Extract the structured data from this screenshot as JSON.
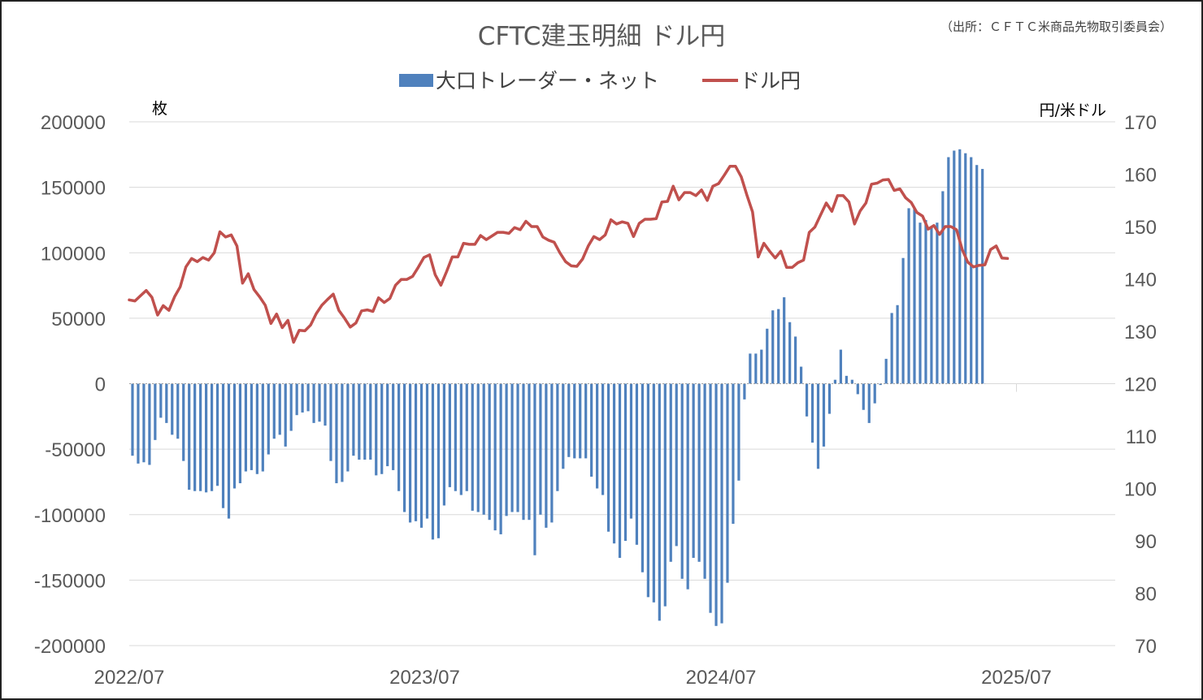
{
  "chart_data": {
    "type": "bar",
    "title": "CFTC建玉明細 ドル円",
    "source_note": "（出所：ＣＦＴＣ米商品先物取引委員会）",
    "left_unit": "枚",
    "right_unit": "円/米ドル",
    "legend_position": "top",
    "grid": true,
    "x_tick_labels": [
      "2022/07",
      "2023/07",
      "2024/07",
      "2025/07"
    ],
    "x_start_date": "2022-07-01",
    "x_end_date": "2025-10-31",
    "y_left": {
      "min": -200000,
      "max": 200000,
      "step": 50000
    },
    "y_right": {
      "min": 70,
      "max": 170,
      "step": 10
    },
    "series": [
      {
        "name": "大口トレーダー・ネット",
        "type": "bar",
        "axis": "left",
        "color": "#4f81bd",
        "start_date": "2022-07-05",
        "interval_days": 7,
        "values": [
          -55000,
          -61000,
          -60000,
          -62000,
          -43000,
          -26000,
          -30000,
          -39000,
          -42000,
          -59000,
          -81000,
          -82000,
          -82000,
          -83000,
          -82000,
          -78000,
          -95000,
          -103000,
          -80000,
          -76000,
          -67000,
          -66000,
          -69000,
          -67000,
          -54000,
          -42000,
          -39000,
          -48000,
          -36000,
          -24000,
          -22000,
          -21000,
          -30000,
          -29000,
          -32000,
          -59000,
          -76000,
          -75000,
          -67000,
          -55000,
          -58000,
          -58000,
          -58000,
          -70000,
          -69000,
          -63000,
          -66000,
          -82000,
          -98000,
          -106000,
          -105000,
          -110000,
          -103000,
          -119000,
          -118000,
          -93000,
          -79000,
          -82000,
          -85000,
          -82000,
          -97000,
          -98000,
          -100000,
          -104000,
          -112000,
          -115000,
          -101000,
          -98000,
          -98000,
          -104000,
          -104000,
          -131000,
          -100000,
          -110000,
          -106000,
          -82000,
          -65000,
          -56000,
          -57000,
          -57000,
          -57000,
          -71000,
          -80000,
          -85000,
          -113000,
          -122000,
          -133000,
          -120000,
          -103000,
          -123000,
          -144000,
          -163000,
          -167000,
          -181000,
          -170000,
          -136000,
          -124000,
          -149000,
          -157000,
          -133000,
          -136000,
          -149000,
          -175000,
          -185000,
          -183000,
          -152000,
          -107000,
          -74000,
          -12000,
          23000,
          23000,
          26000,
          42000,
          56000,
          57000,
          66000,
          47000,
          36000,
          13000,
          -25000,
          -45000,
          -65000,
          -48000,
          -23000,
          3000,
          26000,
          6000,
          3000,
          -8000,
          -20000,
          -30000,
          -15000,
          -1000,
          19000,
          54000,
          60000,
          96000,
          134000,
          134000,
          123000,
          125000,
          120000,
          123000,
          147000,
          173000,
          178000,
          179000,
          176000,
          173000,
          167000,
          164000
        ]
      },
      {
        "name": "ドル円",
        "type": "line",
        "axis": "right",
        "color": "#c0504d",
        "start_date": "2022-07-01",
        "interval_days": 7,
        "values": [
          136.0,
          135.8,
          136.8,
          137.8,
          136.5,
          133.1,
          134.9,
          134.0,
          136.6,
          138.5,
          142.3,
          143.9,
          143.3,
          144.1,
          143.6,
          145.0,
          149.0,
          148.0,
          148.4,
          146.3,
          139.2,
          141.0,
          138.0,
          136.6,
          135.0,
          131.5,
          133.3,
          130.7,
          132.1,
          127.9,
          130.2,
          130.1,
          131.2,
          133.4,
          135.0,
          136.1,
          137.1,
          134.0,
          132.5,
          130.8,
          131.6,
          133.9,
          134.1,
          133.8,
          136.4,
          135.5,
          136.3,
          138.8,
          139.9,
          139.9,
          140.5,
          142.2,
          144.1,
          144.6,
          140.8,
          138.8,
          141.4,
          144.2,
          144.2,
          146.8,
          146.6,
          146.6,
          148.3,
          147.5,
          148.2,
          148.9,
          148.9,
          148.7,
          149.8,
          149.4,
          151.0,
          150.0,
          150.0,
          148.0,
          147.4,
          147.0,
          145.0,
          143.3,
          142.5,
          142.4,
          143.8,
          146.3,
          148.1,
          147.5,
          148.4,
          151.3,
          150.5,
          150.9,
          150.6,
          148.1,
          150.6,
          151.4,
          151.4,
          151.5,
          154.7,
          154.8,
          157.7,
          155.1,
          156.5,
          156.5,
          155.9,
          157.0,
          155.0,
          157.7,
          158.2,
          159.8,
          161.5,
          161.5,
          159.5,
          156.0,
          152.8,
          144.2,
          146.8,
          145.3,
          144.0,
          145.3,
          142.2,
          142.2,
          143.1,
          143.6,
          148.9,
          149.9,
          152.2,
          154.5,
          152.9,
          155.9,
          155.9,
          154.7,
          150.5,
          153.0,
          154.5,
          158.1,
          158.3,
          158.9,
          159.0,
          156.9,
          157.2,
          155.5,
          154.6,
          152.7,
          152.0,
          149.5,
          150.2,
          148.5,
          150.0,
          150.0,
          149.4,
          145.6,
          143.2,
          142.3,
          142.6,
          142.7,
          145.6,
          146.3,
          144.0,
          143.9
        ]
      }
    ]
  }
}
